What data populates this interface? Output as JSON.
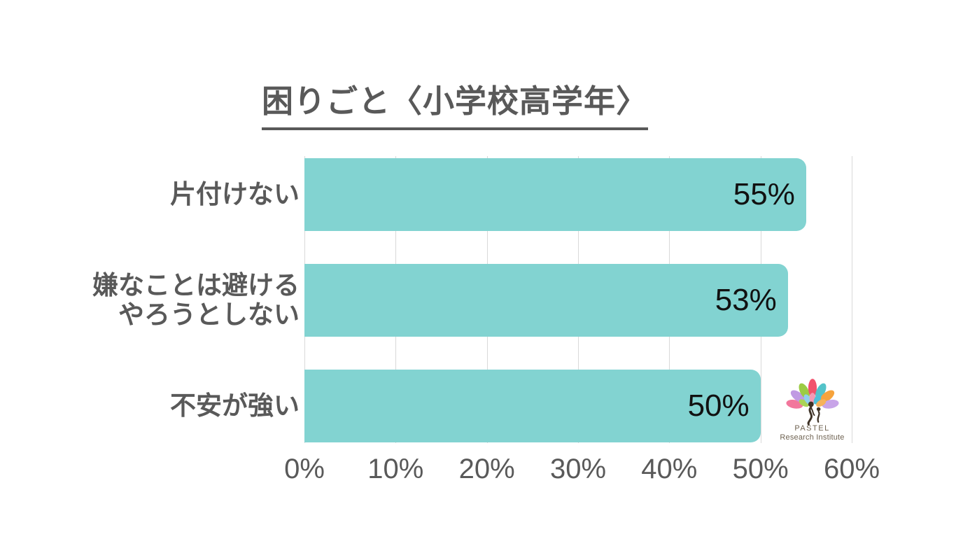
{
  "chart_data": {
    "type": "bar",
    "orientation": "horizontal",
    "title": "困りごと〈小学校高学年〉",
    "categories": [
      "片付けない",
      "嫌なことは避ける やろうとしない",
      "不安が強い"
    ],
    "values": [
      55,
      53,
      50
    ],
    "value_labels": [
      "55%",
      "53%",
      "50%"
    ],
    "xlabel": "",
    "ylabel": "",
    "xlim": [
      0,
      60
    ],
    "x_ticks": [
      "0%",
      "10%",
      "20%",
      "30%",
      "40%",
      "50%",
      "60%"
    ],
    "grid": "vertical-only",
    "legend": "none",
    "bar_color": "#82d3d1",
    "value_text_color": "#111111",
    "label_text_color": "#595959",
    "gridline_color": "#d9d9d9",
    "background_color": "#ffffff"
  },
  "rows": [
    {
      "label_line1": "片付けない",
      "label_line2": "",
      "value_label": "55%"
    },
    {
      "label_line1": "嫌なことは避ける",
      "label_line2": "やろうとしない",
      "value_label": "53%"
    },
    {
      "label_line1": "不安が強い",
      "label_line2": "",
      "value_label": "50%"
    }
  ],
  "axis": {
    "ticks": [
      "0%",
      "10%",
      "20%",
      "30%",
      "40%",
      "50%",
      "60%"
    ]
  },
  "logo": {
    "line1": "PASTEL",
    "line2": "Research Institute",
    "text_color": "#6f6352",
    "figure_color": "#3e3226",
    "petal_colors": [
      "#f2779c",
      "#c09ae3",
      "#9ccb44",
      "#f2536d",
      "#53c3c9",
      "#f6a33c",
      "#c8a4e8",
      "#aad356",
      "#8ed0ee",
      "#f49ab5",
      "#4fc0d8",
      "#f6b25c"
    ]
  }
}
